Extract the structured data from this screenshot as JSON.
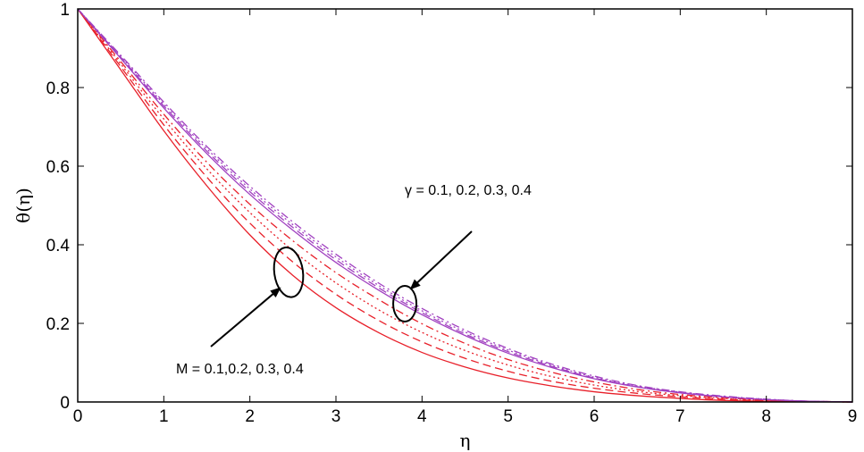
{
  "chart_data": {
    "type": "line",
    "xlabel": "η",
    "ylabel": "θ(η)",
    "xlim": [
      0,
      9
    ],
    "ylim": [
      0,
      1
    ],
    "xticks": [
      "0",
      "1",
      "2",
      "3",
      "4",
      "5",
      "6",
      "7",
      "8",
      "9"
    ],
    "yticks": [
      "0",
      "0.2",
      "0.4",
      "0.6",
      "0.8",
      "1"
    ],
    "grid": false,
    "x": [
      0,
      0.5,
      1,
      1.5,
      2,
      2.5,
      3,
      3.5,
      4,
      4.5,
      5,
      5.5,
      6,
      6.5,
      7,
      7.5,
      8,
      8.5,
      9
    ],
    "colors": {
      "m_series": "#e8202a",
      "gamma_series": "#a040c0"
    },
    "series": [
      {
        "group": "M",
        "style": "solid",
        "values": [
          1,
          0.845,
          0.69,
          0.55,
          0.425,
          0.322,
          0.24,
          0.176,
          0.126,
          0.089,
          0.061,
          0.041,
          0.026,
          0.016,
          0.009,
          0.004,
          0.002,
          0.0005,
          0
        ]
      },
      {
        "group": "M",
        "style": "dash",
        "values": [
          1,
          0.853,
          0.705,
          0.572,
          0.455,
          0.356,
          0.274,
          0.207,
          0.153,
          0.111,
          0.078,
          0.053,
          0.035,
          0.022,
          0.013,
          0.007,
          0.003,
          0.001,
          0
        ]
      },
      {
        "group": "M",
        "style": "dot",
        "values": [
          1,
          0.86,
          0.72,
          0.593,
          0.482,
          0.385,
          0.303,
          0.234,
          0.177,
          0.131,
          0.094,
          0.065,
          0.043,
          0.027,
          0.016,
          0.009,
          0.004,
          0.001,
          0
        ]
      },
      {
        "group": "M",
        "style": "dashdot",
        "values": [
          1,
          0.866,
          0.732,
          0.61,
          0.503,
          0.41,
          0.329,
          0.26,
          0.199,
          0.149,
          0.108,
          0.076,
          0.051,
          0.032,
          0.019,
          0.011,
          0.005,
          0.002,
          0
        ]
      },
      {
        "group": "gamma",
        "style": "solid",
        "values": [
          1,
          0.874,
          0.748,
          0.632,
          0.528,
          0.437,
          0.355,
          0.284,
          0.222,
          0.169,
          0.124,
          0.088,
          0.059,
          0.038,
          0.023,
          0.013,
          0.006,
          0.002,
          0
        ]
      },
      {
        "group": "gamma",
        "style": "dash",
        "values": [
          1,
          0.877,
          0.753,
          0.638,
          0.535,
          0.444,
          0.362,
          0.29,
          0.227,
          0.173,
          0.128,
          0.091,
          0.061,
          0.039,
          0.024,
          0.013,
          0.006,
          0.002,
          0
        ]
      },
      {
        "group": "gamma",
        "style": "dot",
        "values": [
          1,
          0.879,
          0.758,
          0.644,
          0.542,
          0.451,
          0.369,
          0.296,
          0.232,
          0.178,
          0.132,
          0.094,
          0.063,
          0.041,
          0.025,
          0.014,
          0.007,
          0.002,
          0
        ]
      },
      {
        "group": "gamma",
        "style": "dashdot",
        "values": [
          1,
          0.882,
          0.763,
          0.65,
          0.549,
          0.458,
          0.376,
          0.302,
          0.238,
          0.183,
          0.136,
          0.097,
          0.066,
          0.042,
          0.026,
          0.015,
          0.007,
          0.002,
          0
        ]
      }
    ],
    "annotations": [
      {
        "text": "γ = 0.1, 0.2, 0.3, 0.4",
        "group": "gamma"
      },
      {
        "text": "M = 0.1,0.2, 0.3, 0.4",
        "group": "M"
      }
    ]
  }
}
